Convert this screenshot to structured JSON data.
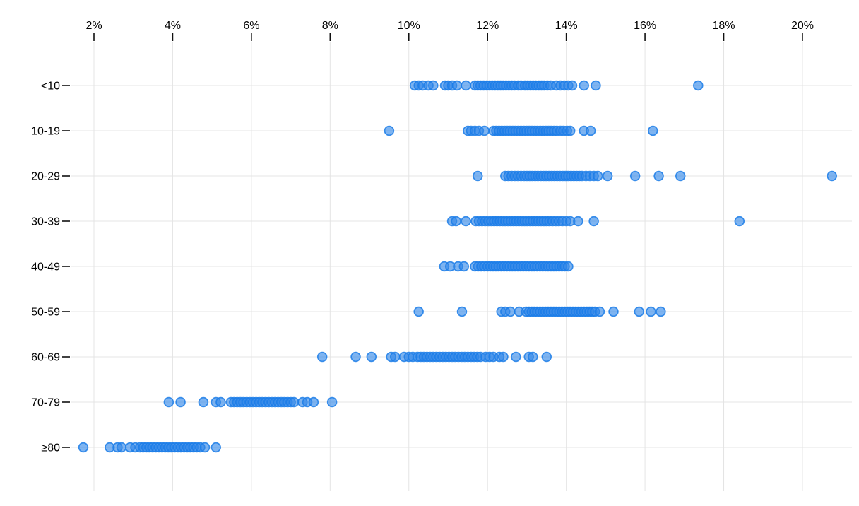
{
  "chart_data": {
    "type": "scatter",
    "variant": "horizontal-strip-plot",
    "title": "",
    "x_axis": {
      "position": "top",
      "unit": "%",
      "tick_values": [
        2,
        4,
        6,
        8,
        10,
        12,
        14,
        16,
        18,
        20
      ],
      "tick_labels": [
        "2%",
        "4%",
        "6%",
        "8%",
        "10%",
        "12%",
        "14%",
        "16%",
        "18%",
        "20%"
      ],
      "range": [
        1.4,
        21.3
      ],
      "grid": true
    },
    "y_axis": {
      "categories": [
        "<10",
        "10-19",
        "20-29",
        "30-39",
        "40-49",
        "50-59",
        "60-69",
        "70-79",
        "≥80"
      ],
      "grid": true
    },
    "series": [
      {
        "name": "<10",
        "values": [
          10.15,
          10.25,
          10.35,
          10.5,
          10.62,
          10.92,
          11.0,
          11.1,
          11.22,
          11.45,
          11.68,
          11.75,
          11.82,
          11.9,
          11.98,
          12.05,
          12.12,
          12.19,
          12.26,
          12.33,
          12.4,
          12.47,
          12.54,
          12.61,
          12.68,
          12.78,
          12.85,
          12.95,
          13.02,
          13.09,
          13.16,
          13.23,
          13.3,
          13.37,
          13.44,
          13.52,
          13.6,
          13.75,
          13.85,
          13.95,
          14.05,
          14.15,
          14.45,
          14.75,
          17.35
        ]
      },
      {
        "name": "10-19",
        "values": [
          9.5,
          11.5,
          11.58,
          11.68,
          11.78,
          11.92,
          12.15,
          12.22,
          12.29,
          12.36,
          12.43,
          12.5,
          12.57,
          12.64,
          12.71,
          12.78,
          12.85,
          12.92,
          12.99,
          13.06,
          13.13,
          13.2,
          13.27,
          13.34,
          13.41,
          13.48,
          13.55,
          13.62,
          13.69,
          13.76,
          13.85,
          13.93,
          14.02,
          14.1,
          14.45,
          14.62,
          16.2
        ]
      },
      {
        "name": "20-29",
        "values": [
          11.75,
          12.45,
          12.53,
          12.61,
          12.69,
          12.77,
          12.85,
          12.93,
          13.0,
          13.07,
          13.14,
          13.21,
          13.28,
          13.35,
          13.42,
          13.49,
          13.56,
          13.63,
          13.7,
          13.77,
          13.84,
          13.91,
          13.98,
          14.05,
          14.12,
          14.19,
          14.26,
          14.33,
          14.4,
          14.5,
          14.6,
          14.7,
          14.8,
          15.05,
          15.75,
          16.35,
          16.9,
          20.75
        ]
      },
      {
        "name": "30-39",
        "values": [
          11.1,
          11.2,
          11.45,
          11.7,
          11.78,
          11.86,
          11.94,
          12.02,
          12.1,
          12.17,
          12.24,
          12.31,
          12.38,
          12.45,
          12.52,
          12.59,
          12.66,
          12.73,
          12.8,
          12.87,
          12.94,
          13.01,
          13.08,
          13.15,
          13.22,
          13.29,
          13.36,
          13.43,
          13.5,
          13.57,
          13.65,
          13.73,
          13.81,
          13.9,
          14.0,
          14.1,
          14.3,
          14.7,
          18.4
        ]
      },
      {
        "name": "40-49",
        "values": [
          10.9,
          11.05,
          11.25,
          11.4,
          11.68,
          11.76,
          11.84,
          11.92,
          12.0,
          12.07,
          12.14,
          12.21,
          12.28,
          12.35,
          12.42,
          12.49,
          12.56,
          12.63,
          12.7,
          12.77,
          12.84,
          12.91,
          12.98,
          13.05,
          13.12,
          13.19,
          13.26,
          13.33,
          13.4,
          13.47,
          13.54,
          13.61,
          13.68,
          13.75,
          13.82,
          13.89,
          13.96,
          14.05
        ]
      },
      {
        "name": "50-59",
        "values": [
          10.25,
          11.35,
          12.35,
          12.45,
          12.58,
          12.8,
          12.98,
          13.05,
          13.12,
          13.19,
          13.26,
          13.33,
          13.4,
          13.47,
          13.54,
          13.61,
          13.68,
          13.75,
          13.82,
          13.89,
          13.96,
          14.03,
          14.1,
          14.17,
          14.24,
          14.31,
          14.38,
          14.45,
          14.52,
          14.59,
          14.66,
          14.73,
          14.85,
          15.2,
          15.85,
          16.15,
          16.4
        ]
      },
      {
        "name": "60-69",
        "values": [
          7.8,
          8.65,
          9.05,
          9.55,
          9.65,
          9.88,
          10.0,
          10.1,
          10.22,
          10.3,
          10.38,
          10.46,
          10.54,
          10.62,
          10.7,
          10.78,
          10.86,
          10.94,
          11.02,
          11.1,
          11.18,
          11.26,
          11.34,
          11.42,
          11.5,
          11.58,
          11.66,
          11.74,
          11.82,
          11.95,
          12.05,
          12.15,
          12.3,
          12.4,
          12.72,
          13.05,
          13.15,
          13.5
        ]
      },
      {
        "name": "70-79",
        "values": [
          3.9,
          4.2,
          4.78,
          5.1,
          5.22,
          5.48,
          5.56,
          5.64,
          5.72,
          5.8,
          5.88,
          5.96,
          6.04,
          6.12,
          6.2,
          6.28,
          6.36,
          6.44,
          6.52,
          6.6,
          6.68,
          6.76,
          6.84,
          6.92,
          7.0,
          7.08,
          7.3,
          7.42,
          7.58,
          8.05
        ]
      },
      {
        "name": "≥80",
        "values": [
          1.73,
          2.4,
          2.6,
          2.7,
          2.92,
          3.05,
          3.17,
          3.25,
          3.33,
          3.41,
          3.49,
          3.57,
          3.65,
          3.73,
          3.81,
          3.89,
          3.97,
          4.05,
          4.13,
          4.21,
          4.29,
          4.37,
          4.45,
          4.53,
          4.61,
          4.7,
          4.82,
          5.1
        ]
      }
    ],
    "style": {
      "background": "#ffffff",
      "point_color": "#2e86e8",
      "point_fill_opacity": 0.62,
      "point_stroke": "#1b7ce8",
      "gridline_color": "#e4e4e4",
      "tick_color": "#111111",
      "label_color": "#000000"
    },
    "legend": "none"
  }
}
